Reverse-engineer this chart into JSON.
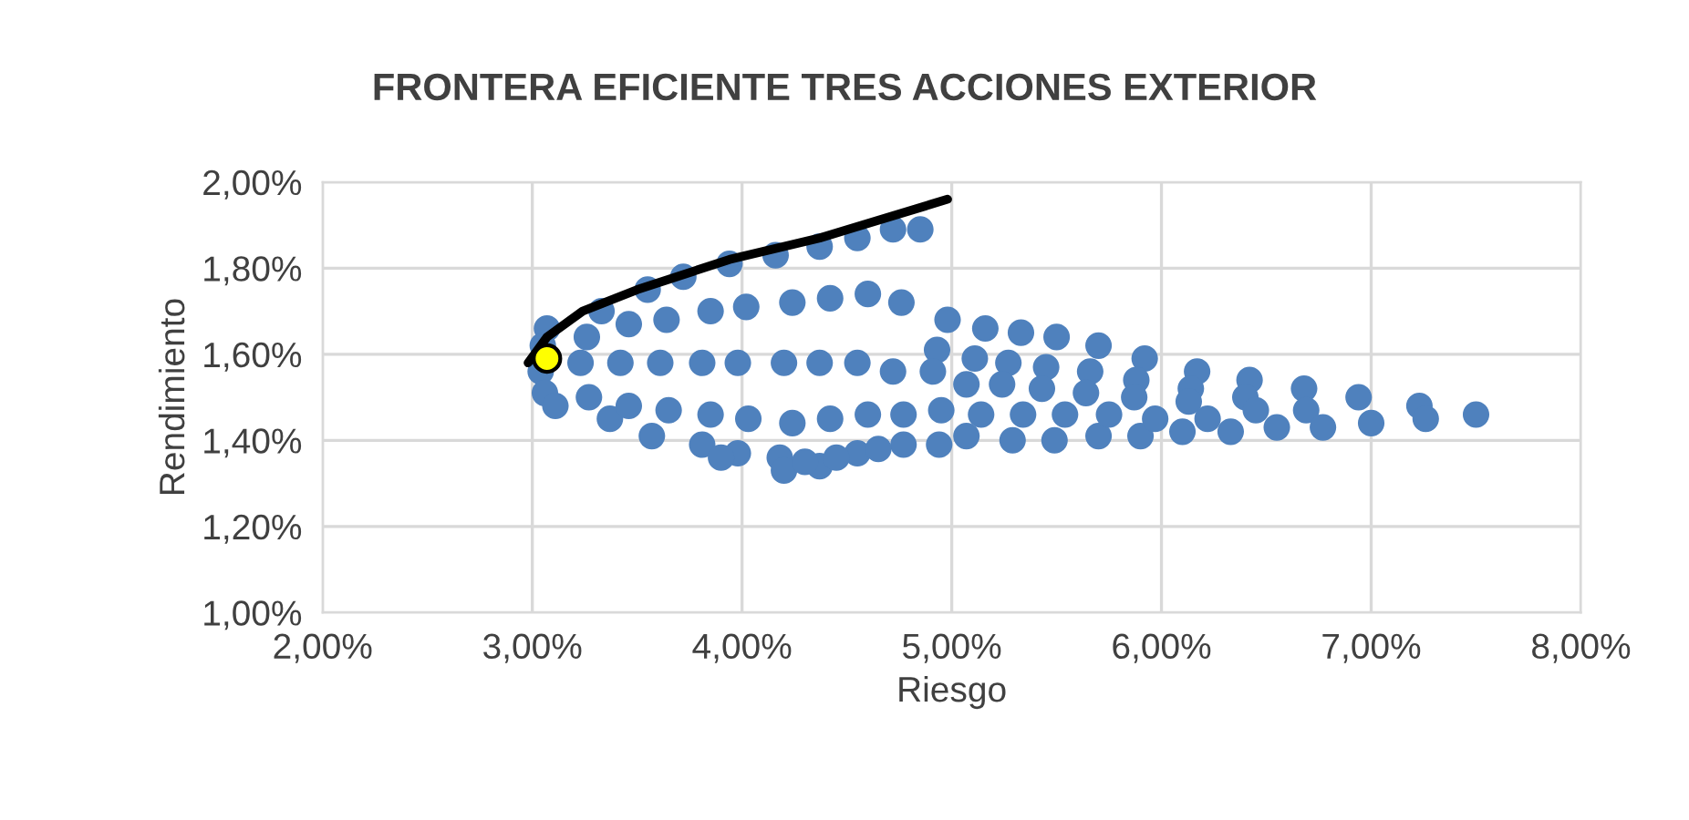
{
  "chart_data": {
    "type": "scatter",
    "title": "FRONTERA EFICIENTE TRES ACCIONES EXTERIOR",
    "xlabel": "Riesgo",
    "ylabel": "Rendimiento",
    "xlim": [
      2,
      8
    ],
    "ylim": [
      1,
      2
    ],
    "xticks": [
      {
        "value": 2,
        "label": "2,00%"
      },
      {
        "value": 3,
        "label": "3,00%"
      },
      {
        "value": 4,
        "label": "4,00%"
      },
      {
        "value": 5,
        "label": "5,00%"
      },
      {
        "value": 6,
        "label": "6,00%"
      },
      {
        "value": 7,
        "label": "7,00%"
      },
      {
        "value": 8,
        "label": "8,00%"
      }
    ],
    "yticks": [
      {
        "value": 1,
        "label": "1,00%"
      },
      {
        "value": 1.2,
        "label": "1,20%"
      },
      {
        "value": 1.4,
        "label": "1,40%"
      },
      {
        "value": 1.6,
        "label": "1,60%"
      },
      {
        "value": 1.8,
        "label": "1,80%"
      },
      {
        "value": 2,
        "label": "2,00%"
      }
    ],
    "grid": true,
    "legend": false,
    "marker": "circle",
    "series": [
      {
        "color": "#4f81bd",
        "x": [
          3.07,
          3.05,
          3.04,
          3.06,
          3.11,
          3.33,
          3.26,
          3.23,
          3.27,
          3.37,
          3.55,
          3.46,
          3.42,
          3.46,
          3.57,
          3.72,
          3.64,
          3.61,
          3.65,
          3.81,
          3.94,
          3.85,
          3.81,
          3.85,
          3.98,
          4.16,
          4.02,
          3.98,
          4.03,
          4.18,
          4.37,
          4.24,
          4.2,
          4.24,
          4.37,
          4.55,
          4.42,
          4.37,
          4.42,
          4.55,
          4.72,
          4.6,
          4.55,
          4.6,
          4.77,
          4.85,
          4.76,
          4.72,
          4.77,
          4.94,
          4.2,
          4.3,
          4.45,
          4.65,
          3.9,
          4.98,
          4.93,
          4.91,
          4.95,
          5.07,
          5.16,
          5.11,
          5.07,
          5.14,
          5.29,
          5.33,
          5.27,
          5.24,
          5.34,
          5.49,
          5.5,
          5.45,
          5.43,
          5.54,
          5.7,
          5.7,
          5.66,
          5.64,
          5.75,
          5.9,
          5.92,
          5.88,
          5.87,
          5.97,
          6.1,
          6.17,
          6.14,
          6.13,
          6.22,
          6.33,
          6.42,
          6.4,
          6.45,
          6.55,
          6.68,
          6.69,
          6.77,
          6.94,
          7.0,
          7.23,
          7.26,
          7.5
        ],
        "values": [
          1.66,
          1.62,
          1.56,
          1.51,
          1.48,
          1.7,
          1.64,
          1.58,
          1.5,
          1.45,
          1.75,
          1.67,
          1.58,
          1.48,
          1.41,
          1.78,
          1.68,
          1.58,
          1.47,
          1.39,
          1.81,
          1.7,
          1.58,
          1.46,
          1.37,
          1.83,
          1.71,
          1.58,
          1.45,
          1.36,
          1.85,
          1.72,
          1.58,
          1.44,
          1.34,
          1.87,
          1.73,
          1.58,
          1.45,
          1.37,
          1.89,
          1.74,
          1.58,
          1.46,
          1.39,
          1.89,
          1.72,
          1.56,
          1.46,
          1.39,
          1.33,
          1.35,
          1.36,
          1.38,
          1.36,
          1.68,
          1.61,
          1.56,
          1.47,
          1.41,
          1.66,
          1.59,
          1.53,
          1.46,
          1.4,
          1.65,
          1.58,
          1.53,
          1.46,
          1.4,
          1.64,
          1.57,
          1.52,
          1.46,
          1.41,
          1.62,
          1.56,
          1.51,
          1.46,
          1.41,
          1.59,
          1.54,
          1.5,
          1.45,
          1.42,
          1.56,
          1.52,
          1.49,
          1.45,
          1.42,
          1.54,
          1.5,
          1.47,
          1.43,
          1.52,
          1.47,
          1.43,
          1.5,
          1.44,
          1.48,
          1.45,
          1.46
        ]
      },
      {
        "type": "line",
        "color": "#000000",
        "marker": "none",
        "x": [
          2.98,
          3.07,
          3.24,
          3.5,
          3.94,
          4.37,
          4.98
        ],
        "values": [
          1.58,
          1.64,
          1.7,
          1.75,
          1.82,
          1.87,
          1.96
        ]
      },
      {
        "color": "#ffff00",
        "x": [
          3.07
        ],
        "values": [
          1.59
        ]
      }
    ]
  }
}
